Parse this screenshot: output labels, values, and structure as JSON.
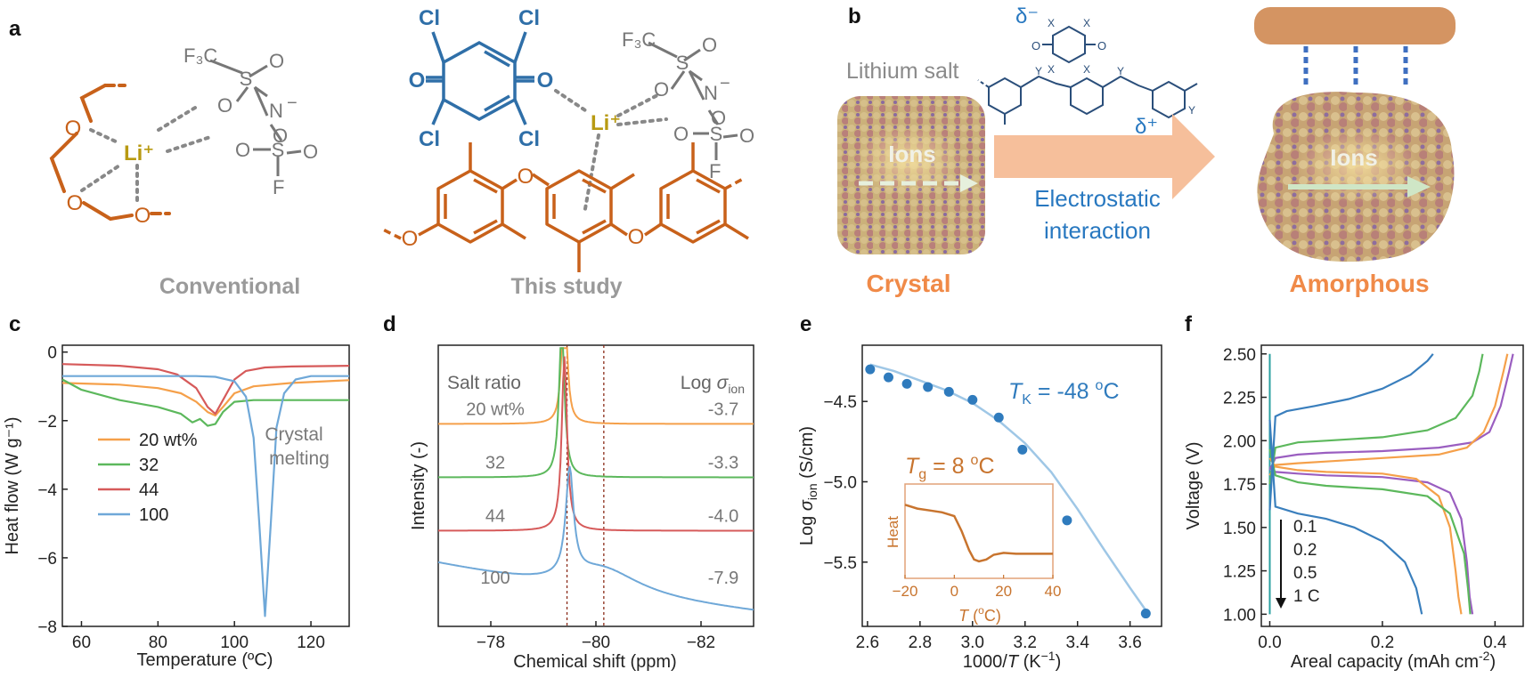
{
  "panel_labels": [
    "a",
    "b",
    "c",
    "d",
    "e",
    "f"
  ],
  "panel_a": {
    "captions": [
      "Conventional",
      "This study"
    ],
    "conventional_atoms": [
      "O",
      "O",
      "O",
      "Li⁺",
      "F₃C",
      "S",
      "O",
      "O",
      "N",
      "−",
      "O",
      "S",
      "O",
      "O",
      "F"
    ],
    "study_atoms": [
      "Cl",
      "Cl",
      "Cl",
      "Cl",
      "O",
      "O",
      "Li⁺",
      "F₃C",
      "S",
      "O",
      "O",
      "N",
      "−",
      "O",
      "S",
      "O",
      "O",
      "F",
      "O",
      "O",
      "O"
    ]
  },
  "panel_b": {
    "left_caption": "Crystal",
    "right_caption": "Amorphous",
    "lithium_salt_label": "Lithium salt",
    "ions_label": "Ions",
    "arrow_label_line1": "Electrostatic",
    "arrow_label_line2": "interaction",
    "delta_minus": "δ⁻",
    "delta_plus": "δ⁺",
    "sub_labels": [
      "X",
      "X",
      "X",
      "X",
      "O",
      "O",
      "Y",
      "Y",
      "Y"
    ],
    "colors": {
      "accent": "#f08a48",
      "blue": "#2878c0",
      "arrow": "#f6bf9b"
    }
  },
  "panel_c": {
    "chart_data": {
      "type": "line",
      "xlabel": "Temperature (ºC)",
      "ylabel": "Heat flow (W g⁻¹)",
      "xlim": [
        55,
        130
      ],
      "ylim": [
        -8,
        0.2
      ],
      "xticks": [
        60,
        80,
        100,
        120
      ],
      "yticks": [
        0,
        -2,
        -4,
        -6,
        -8
      ],
      "annotation_line1": "Crystal",
      "annotation_line2": "melting",
      "legend": [
        "20 wt%",
        "32",
        "44",
        "100"
      ],
      "series": [
        {
          "name": "20 wt%",
          "color": "#f5a04a",
          "x": [
            55,
            70,
            80,
            86,
            90,
            93,
            95,
            97,
            100,
            105,
            115,
            130
          ],
          "y": [
            -0.9,
            -0.95,
            -1.05,
            -1.2,
            -1.45,
            -1.75,
            -1.85,
            -1.6,
            -1.2,
            -1.0,
            -0.9,
            -0.82
          ]
        },
        {
          "name": "32",
          "color": "#5cb85c",
          "x": [
            55,
            60,
            70,
            80,
            86,
            89,
            91,
            93,
            95,
            97,
            100,
            105,
            115,
            130
          ],
          "y": [
            -0.8,
            -1.1,
            -1.4,
            -1.6,
            -1.8,
            -2.05,
            -1.95,
            -2.15,
            -2.1,
            -1.75,
            -1.45,
            -1.4,
            -1.4,
            -1.4
          ]
        },
        {
          "name": "44",
          "color": "#d65a5a",
          "x": [
            55,
            70,
            80,
            85,
            90,
            93,
            95,
            97,
            100,
            103,
            108,
            115,
            130
          ],
          "y": [
            -0.35,
            -0.4,
            -0.5,
            -0.65,
            -1.05,
            -1.6,
            -1.8,
            -1.4,
            -0.8,
            -0.55,
            -0.45,
            -0.42,
            -0.4
          ]
        },
        {
          "name": "100",
          "color": "#6fa8d8",
          "x": [
            55,
            70,
            90,
            95,
            100,
            103,
            105,
            106.5,
            108,
            109.5,
            111,
            113,
            116,
            120,
            130
          ],
          "y": [
            -0.7,
            -0.7,
            -0.7,
            -0.72,
            -0.85,
            -1.3,
            -2.5,
            -5.0,
            -7.7,
            -5.0,
            -2.2,
            -1.2,
            -0.8,
            -0.7,
            -0.7
          ]
        }
      ]
    }
  },
  "panel_d": {
    "chart_data": {
      "type": "line",
      "xlabel": "Chemical shift (ppm)",
      "ylabel": "Intensity (-)",
      "xlim": [
        -77,
        -83
      ],
      "xticks": [
        -78,
        -80,
        -82
      ],
      "dashed_lines_x": [
        -79.45,
        -80.15
      ],
      "header_left": "Salt ratio",
      "header_right": "Log σion",
      "series": [
        {
          "name": "20 wt%",
          "log_sigma": "-3.7",
          "color": "#f5a04a",
          "baseline": 0.72,
          "peak_x": -79.4,
          "peak_h": 0.6,
          "width": 0.05,
          "tail": 0
        },
        {
          "name": "32",
          "log_sigma": "-3.3",
          "color": "#5cb85c",
          "baseline": 0.53,
          "peak_x": -79.35,
          "peak_h": 0.55,
          "width": 0.06,
          "tail": 0
        },
        {
          "name": "44",
          "log_sigma": "-4.0",
          "color": "#d65a5a",
          "baseline": 0.34,
          "peak_x": -79.4,
          "peak_h": 0.62,
          "width": 0.06,
          "tail": 0
        },
        {
          "name": "100",
          "log_sigma": "-7.9",
          "color": "#6fa8d8",
          "baseline": 0.12,
          "peak_x": -79.5,
          "peak_h": 0.38,
          "width": 0.09,
          "tail": 1
        }
      ]
    }
  },
  "panel_e": {
    "chart_data": {
      "type": "scatter",
      "xlabel": "1000/T (K⁻¹)",
      "ylabel": "Log σion (S/cm)",
      "xlim": [
        2.58,
        3.72
      ],
      "ylim": [
        -5.9,
        -4.15
      ],
      "xticks": [
        2.6,
        2.8,
        3.0,
        3.2,
        3.4,
        3.6
      ],
      "yticks": [
        -4.5,
        -5.0,
        -5.5
      ],
      "points_x": [
        2.61,
        2.68,
        2.75,
        2.83,
        2.91,
        3.0,
        3.1,
        3.19,
        3.36,
        3.66
      ],
      "points_y": [
        -4.3,
        -4.35,
        -4.39,
        -4.41,
        -4.44,
        -4.49,
        -4.6,
        -4.8,
        -5.24,
        -5.82
      ],
      "fit_x": [
        2.61,
        2.7,
        2.8,
        2.9,
        3.0,
        3.1,
        3.2,
        3.3,
        3.4,
        3.5,
        3.6,
        3.66
      ],
      "fit_y": [
        -4.27,
        -4.31,
        -4.37,
        -4.43,
        -4.51,
        -4.62,
        -4.76,
        -4.94,
        -5.17,
        -5.42,
        -5.66,
        -5.8
      ],
      "tk_label": "TK = -48 ºC",
      "point_color": "#2f7bbd",
      "fit_color": "#9fc7e6"
    },
    "inset": {
      "chart_data": {
        "type": "line",
        "xlabel": "T (ºC)",
        "ylabel": "Heat",
        "xlim": [
          -20,
          40
        ],
        "xticks": [
          -20,
          0,
          20,
          40
        ],
        "tg_label": "Tg = 8 ºC",
        "x": [
          -20,
          -15,
          -10,
          -5,
          0,
          3,
          6,
          8,
          10,
          13,
          16,
          20,
          25,
          30,
          35,
          40
        ],
        "y": [
          0.78,
          0.74,
          0.72,
          0.7,
          0.66,
          0.5,
          0.3,
          0.2,
          0.18,
          0.2,
          0.25,
          0.27,
          0.26,
          0.26,
          0.26,
          0.26
        ],
        "color": "#c8742e"
      }
    }
  },
  "panel_f": {
    "chart_data": {
      "type": "line",
      "xlabel": "Areal capacity (mAh cm⁻²)",
      "ylabel": "Voltage (V)",
      "xlim": [
        -0.015,
        0.45
      ],
      "ylim": [
        0.93,
        2.55
      ],
      "xticks": [
        0.0,
        0.2,
        0.4
      ],
      "yticks": [
        1.0,
        1.25,
        1.5,
        1.75,
        2.0,
        2.25,
        2.5
      ],
      "legend": [
        "0.1",
        "0.2",
        "0.5",
        "1 C"
      ],
      "series": [
        {
          "name": "0.1",
          "color": "#9a5ec0",
          "discharge_x": [
            0,
            0.01,
            0.05,
            0.1,
            0.2,
            0.28,
            0.32,
            0.34,
            0.35,
            0.355,
            0.36
          ],
          "discharge_y": [
            1.85,
            1.82,
            1.81,
            1.8,
            1.79,
            1.76,
            1.7,
            1.55,
            1.3,
            1.1,
            1.0
          ],
          "charge_x": [
            0,
            0.01,
            0.05,
            0.1,
            0.2,
            0.3,
            0.36,
            0.39,
            0.41,
            0.425,
            0.432
          ],
          "charge_y": [
            1.83,
            1.9,
            1.92,
            1.93,
            1.94,
            1.96,
            1.99,
            2.05,
            2.2,
            2.4,
            2.5
          ]
        },
        {
          "name": "0.2",
          "color": "#f5a04a",
          "discharge_x": [
            0,
            0.01,
            0.05,
            0.1,
            0.2,
            0.26,
            0.3,
            0.32,
            0.33,
            0.335,
            0.34
          ],
          "discharge_y": [
            1.9,
            1.85,
            1.83,
            1.82,
            1.81,
            1.78,
            1.68,
            1.5,
            1.25,
            1.1,
            1.0
          ],
          "charge_x": [
            0,
            0.01,
            0.05,
            0.1,
            0.2,
            0.3,
            0.35,
            0.38,
            0.4,
            0.415,
            0.422
          ],
          "charge_y": [
            1.8,
            1.86,
            1.87,
            1.88,
            1.9,
            1.92,
            1.96,
            2.05,
            2.2,
            2.4,
            2.5
          ]
        },
        {
          "name": "0.5",
          "color": "#5cb85c",
          "discharge_x": [
            0,
            0.01,
            0.05,
            0.1,
            0.2,
            0.28,
            0.32,
            0.345,
            0.352,
            0.356
          ],
          "discharge_y": [
            1.95,
            1.8,
            1.76,
            1.74,
            1.72,
            1.68,
            1.58,
            1.35,
            1.15,
            1.0
          ],
          "charge_x": [
            0,
            0.01,
            0.05,
            0.1,
            0.2,
            0.28,
            0.33,
            0.36,
            0.372,
            0.378
          ],
          "charge_y": [
            1.75,
            1.96,
            1.99,
            2.0,
            2.02,
            2.06,
            2.13,
            2.26,
            2.4,
            2.5
          ]
        },
        {
          "name": "1 C",
          "color": "#3a7fbd",
          "discharge_x": [
            0,
            0.01,
            0.05,
            0.1,
            0.15,
            0.2,
            0.24,
            0.26,
            0.266,
            0.27
          ],
          "discharge_y": [
            2.12,
            1.62,
            1.58,
            1.55,
            1.5,
            1.42,
            1.3,
            1.15,
            1.06,
            1.0
          ],
          "charge_x": [
            0,
            0.01,
            0.03,
            0.08,
            0.14,
            0.2,
            0.25,
            0.28,
            0.29
          ],
          "charge_y": [
            1.6,
            2.14,
            2.17,
            2.2,
            2.24,
            2.3,
            2.38,
            2.46,
            2.5
          ]
        }
      ]
    }
  }
}
